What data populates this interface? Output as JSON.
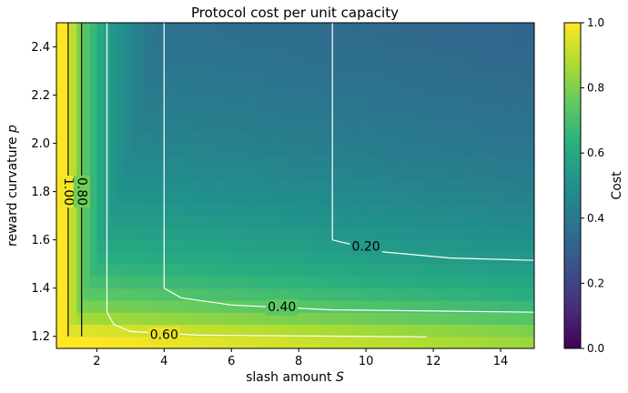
{
  "chart_data": {
    "type": "heatmap",
    "title": "Protocol cost per unit capacity",
    "xlabel": "slash amount",
    "xlabel_symbol": "S",
    "ylabel": "reward curvature",
    "ylabel_symbol": "p",
    "xlim": [
      0.8,
      15.0
    ],
    "ylim": [
      1.15,
      2.5
    ],
    "x_ticks": [
      "2",
      "4",
      "6",
      "8",
      "10",
      "12",
      "14"
    ],
    "x_tick_values": [
      2,
      4,
      6,
      8,
      10,
      12,
      14
    ],
    "y_ticks": [
      "1.2",
      "1.4",
      "1.6",
      "1.8",
      "2.0",
      "2.2",
      "2.4"
    ],
    "y_tick_values": [
      1.2,
      1.4,
      1.6,
      1.8,
      2.0,
      2.2,
      2.4
    ],
    "colorbar": {
      "label": "Cost",
      "range": [
        0.0,
        1.0
      ],
      "ticks": [
        "0.0",
        "0.2",
        "0.4",
        "0.6",
        "0.8",
        "1.0"
      ],
      "tick_values": [
        0.0,
        0.2,
        0.4,
        0.6,
        0.8,
        1.0
      ],
      "colormap": "viridis"
    },
    "contours": [
      {
        "level": 1.0,
        "label": "1.00",
        "color": "#000000",
        "points": [
          [
            1.15,
            1.2
          ],
          [
            1.15,
            2.5
          ]
        ],
        "label_at": [
          1.15,
          1.8
        ]
      },
      {
        "level": 0.8,
        "label": "0.80",
        "color": "#000000",
        "points": [
          [
            1.55,
            1.2
          ],
          [
            1.55,
            2.5
          ]
        ],
        "label_at": [
          1.55,
          1.8
        ]
      },
      {
        "level": 0.6,
        "label": "0.60",
        "color": "#ffffff",
        "points": [
          [
            2.3,
            2.5
          ],
          [
            2.3,
            1.3
          ],
          [
            2.5,
            1.25
          ],
          [
            3.0,
            1.22
          ],
          [
            5.0,
            1.205
          ],
          [
            11.8,
            1.198
          ]
        ],
        "label_at": [
          4.0,
          1.205
        ]
      },
      {
        "level": 0.4,
        "label": "0.40",
        "color": "#ffffff",
        "points": [
          [
            4.0,
            2.5
          ],
          [
            4.0,
            1.4
          ],
          [
            4.5,
            1.36
          ],
          [
            6.0,
            1.33
          ],
          [
            9.0,
            1.31
          ],
          [
            15.0,
            1.3
          ]
        ],
        "label_at": [
          7.5,
          1.32
        ]
      },
      {
        "level": 0.2,
        "label": "0.20",
        "color": "#ffffff",
        "points": [
          [
            9.0,
            2.5
          ],
          [
            9.0,
            1.6
          ],
          [
            10.5,
            1.55
          ],
          [
            12.5,
            1.525
          ],
          [
            15.0,
            1.515
          ]
        ],
        "label_at": [
          10.0,
          1.57
        ]
      }
    ]
  }
}
